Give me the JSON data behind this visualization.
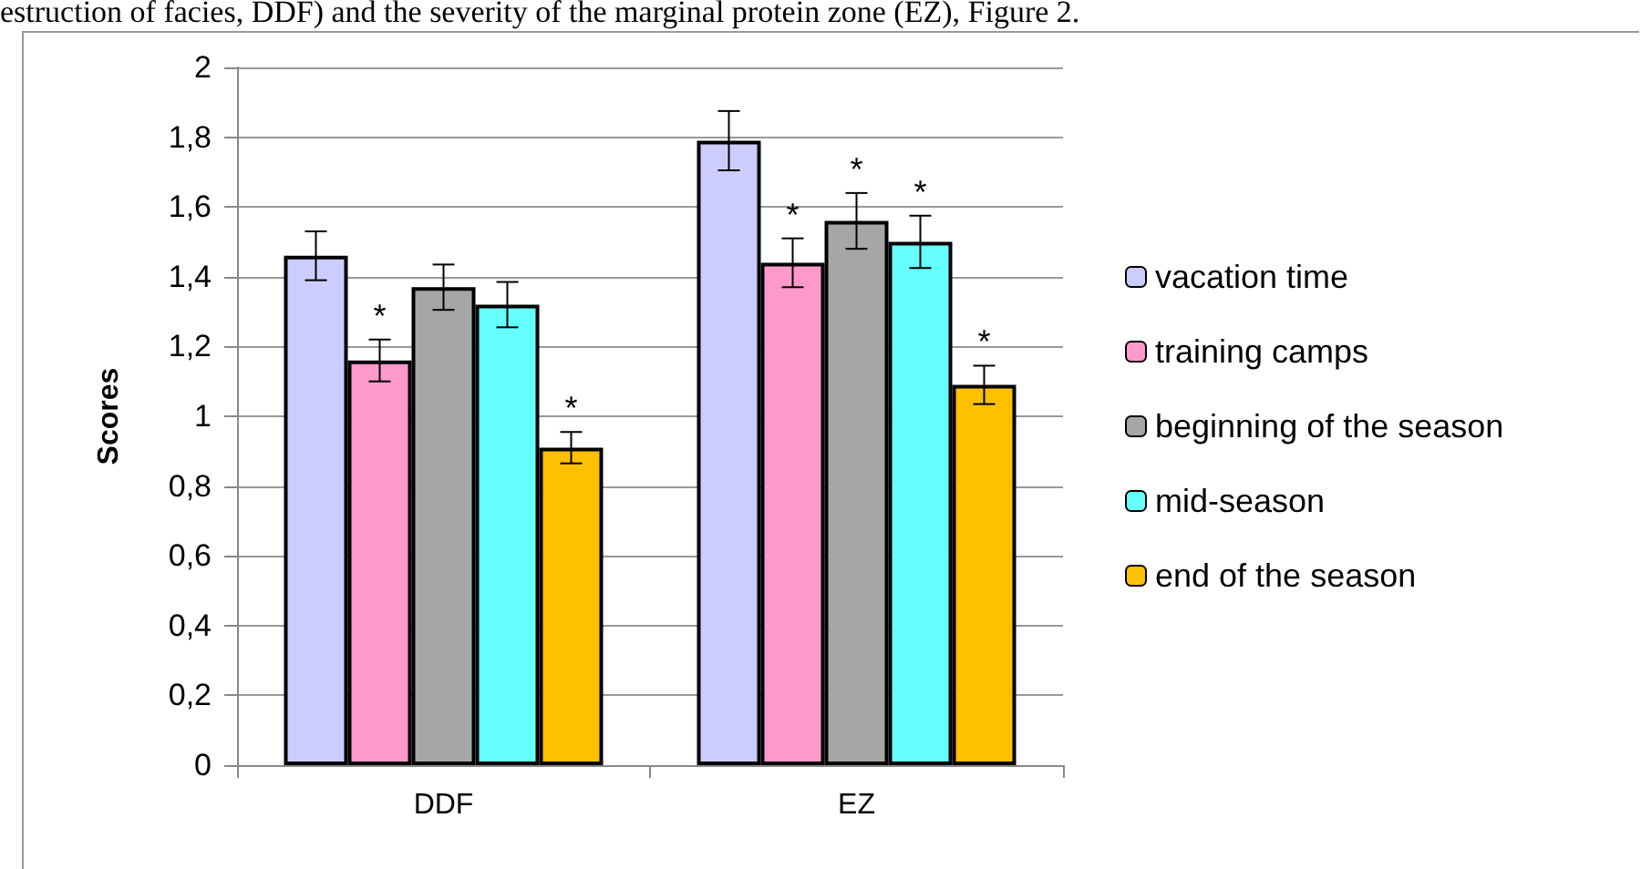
{
  "chart_data": {
    "type": "bar",
    "annotations": [
      "estruction of facies, DDF) and the severity of the marginal protein zone (EZ), Figure 2."
    ],
    "ylabel": "Scores",
    "categories": [
      "DDF",
      "EZ"
    ],
    "series": [
      {
        "name": "vacation time",
        "color": "#ccccff",
        "values": [
          1.46,
          1.79
        ],
        "errors": [
          0.07,
          0.085
        ]
      },
      {
        "name": "training camps",
        "color": "#ff99cc",
        "values": [
          1.16,
          1.44
        ],
        "errors": [
          0.06,
          0.07
        ],
        "value_labels": [
          "*",
          "*"
        ]
      },
      {
        "name": "beginning of the season",
        "color": "#a6a6a6",
        "values": [
          1.37,
          1.56
        ],
        "errors": [
          0.065,
          0.08
        ],
        "value_labels": [
          null,
          "*"
        ]
      },
      {
        "name": "mid-season",
        "color": "#66ffff",
        "values": [
          1.32,
          1.5
        ],
        "errors": [
          0.065,
          0.075
        ],
        "value_labels": [
          null,
          "*"
        ]
      },
      {
        "name": "end of the season",
        "color": "#ffc000",
        "values": [
          0.91,
          1.09
        ],
        "errors": [
          0.045,
          0.055
        ],
        "value_labels": [
          "*",
          "*"
        ]
      }
    ],
    "ylim": [
      0,
      2
    ],
    "yticks": [
      0,
      {
        "value": 0.2,
        "label": "0,2"
      },
      {
        "value": 0.4,
        "label": "0,4"
      },
      {
        "value": 0.6,
        "label": "0,6"
      },
      {
        "value": 0.8,
        "label": "0,8"
      },
      1,
      {
        "value": 1.2,
        "label": "1,2"
      },
      {
        "value": 1.4,
        "label": "1,4"
      },
      {
        "value": 1.6,
        "label": "1,6"
      },
      {
        "value": 1.8,
        "label": "1,8"
      },
      2
    ],
    "grid": "y",
    "legend": "right"
  }
}
